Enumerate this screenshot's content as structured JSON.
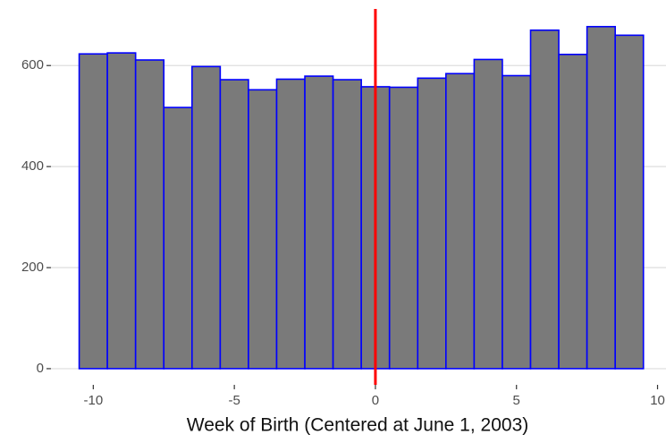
{
  "chart_data": {
    "type": "histogram",
    "x_label": "Week of Birth (Centered at June 1, 2003)",
    "bins": [
      -10.5,
      -9.5,
      -8.5,
      -7.5,
      -6.5,
      -5.5,
      -4.5,
      -3.5,
      -2.5,
      -1.5,
      -0.5,
      0.5,
      1.5,
      2.5,
      3.5,
      4.5,
      5.5,
      6.5,
      7.5,
      8.5,
      9.5
    ],
    "values": [
      623,
      625,
      611,
      517,
      598,
      572,
      552,
      573,
      579,
      572,
      558,
      557,
      575,
      584,
      612,
      580,
      670,
      622,
      677,
      660
    ],
    "color": "#7a7a7a",
    "edge_color": "#0000ff",
    "vline": 0,
    "vline_color": "#ff0000",
    "xlim": [
      -11.5,
      10.3
    ],
    "xticks": [
      -10,
      -5,
      0,
      5,
      10
    ],
    "ylim": [
      -32,
      712
    ],
    "yticks": [
      0,
      200,
      400,
      600
    ],
    "grid": true
  }
}
